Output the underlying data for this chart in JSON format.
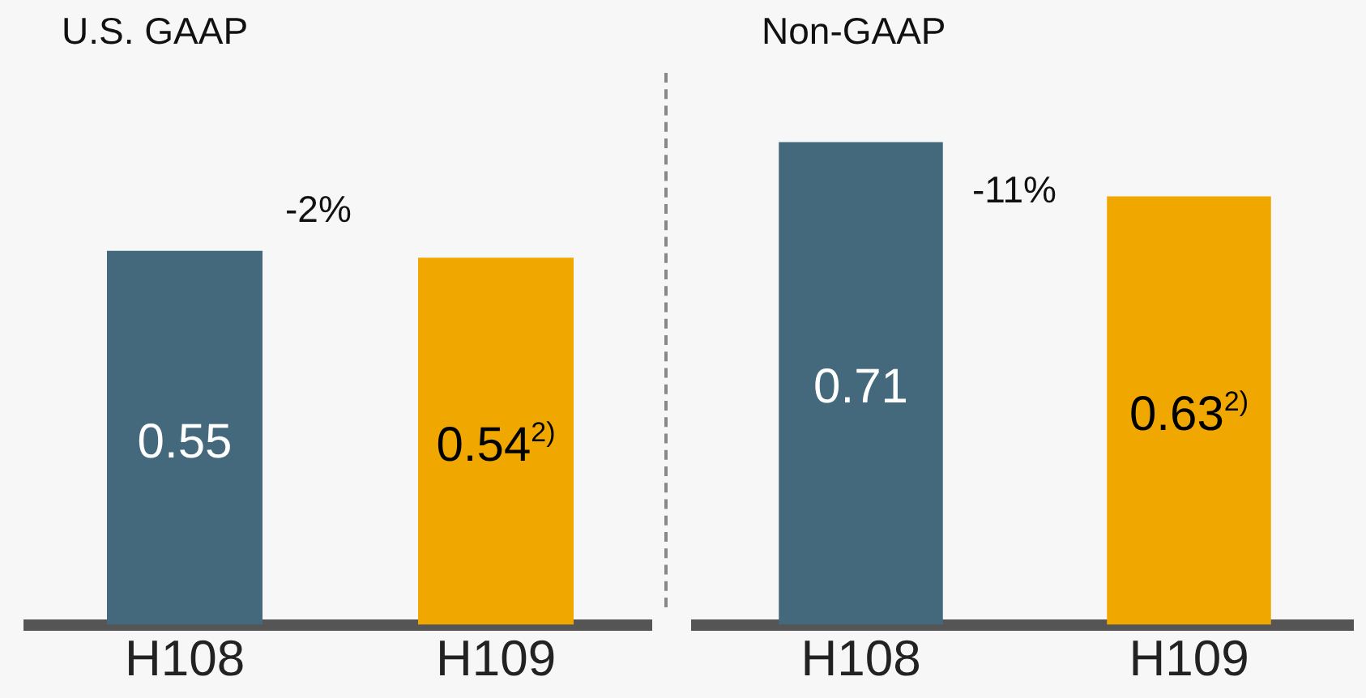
{
  "chart_data": [
    {
      "type": "bar",
      "title": "U.S. GAAP",
      "categories": [
        "H108",
        "H109"
      ],
      "values": [
        0.55,
        0.54
      ],
      "colors": [
        "#44687c",
        "#f0a800"
      ],
      "value_labels": [
        "0.55",
        "0.54$^{2)}$"
      ],
      "annotations": [
        "-2%"
      ],
      "tick_labels": "x",
      "grid": false,
      "legend": false
    },
    {
      "type": "bar",
      "title": "Non-GAAP",
      "categories": [
        "H108",
        "H109"
      ],
      "values": [
        0.71,
        0.63
      ],
      "colors": [
        "#44687c",
        "#f0a800"
      ],
      "value_labels": [
        "0.71",
        "0.63$^{2)}$"
      ],
      "annotations": [
        "-11%"
      ],
      "tick_labels": "x",
      "grid": false,
      "legend": false
    }
  ]
}
